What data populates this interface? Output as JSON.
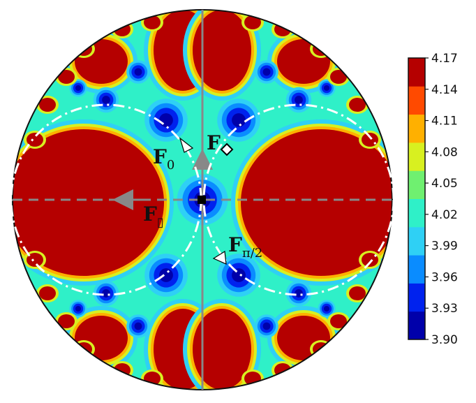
{
  "chart_data": {
    "type": "heatmap",
    "projection": "disk (Poincaré-style hyperbolic tiling)",
    "colormap": "jet",
    "colorbar": {
      "ticks": [
        "3.90",
        "3.93",
        "3.96",
        "3.99",
        "4.02",
        "4.05",
        "4.08",
        "4.11",
        "4.14",
        "4.17"
      ],
      "range": [
        3.9,
        4.17
      ],
      "levels": [
        3.9,
        3.93,
        3.96,
        3.99,
        4.02,
        4.05,
        4.08,
        4.11,
        4.14,
        4.17
      ],
      "colors": [
        "#0000aa",
        "#0022ee",
        "#0a8cff",
        "#2fd0f5",
        "#2ff0c8",
        "#6ff070",
        "#d8f020",
        "#ffb000",
        "#ff4a00",
        "#b50000"
      ]
    },
    "points": [
      {
        "label_main": "F",
        "label_sub": "0",
        "marker": "arrowhead"
      },
      {
        "label_main": "F",
        "label_sub": "",
        "marker": "diamond"
      },
      {
        "label_main": "F",
        "label_sub": "π/2",
        "marker": "arrowhead"
      },
      {
        "label_main": "F",
        "label_sub": "▯",
        "marker": "square"
      }
    ],
    "axes": {
      "vertical_line": "gray solid",
      "horizontal_line": "gray dashed"
    },
    "grid": false
  }
}
